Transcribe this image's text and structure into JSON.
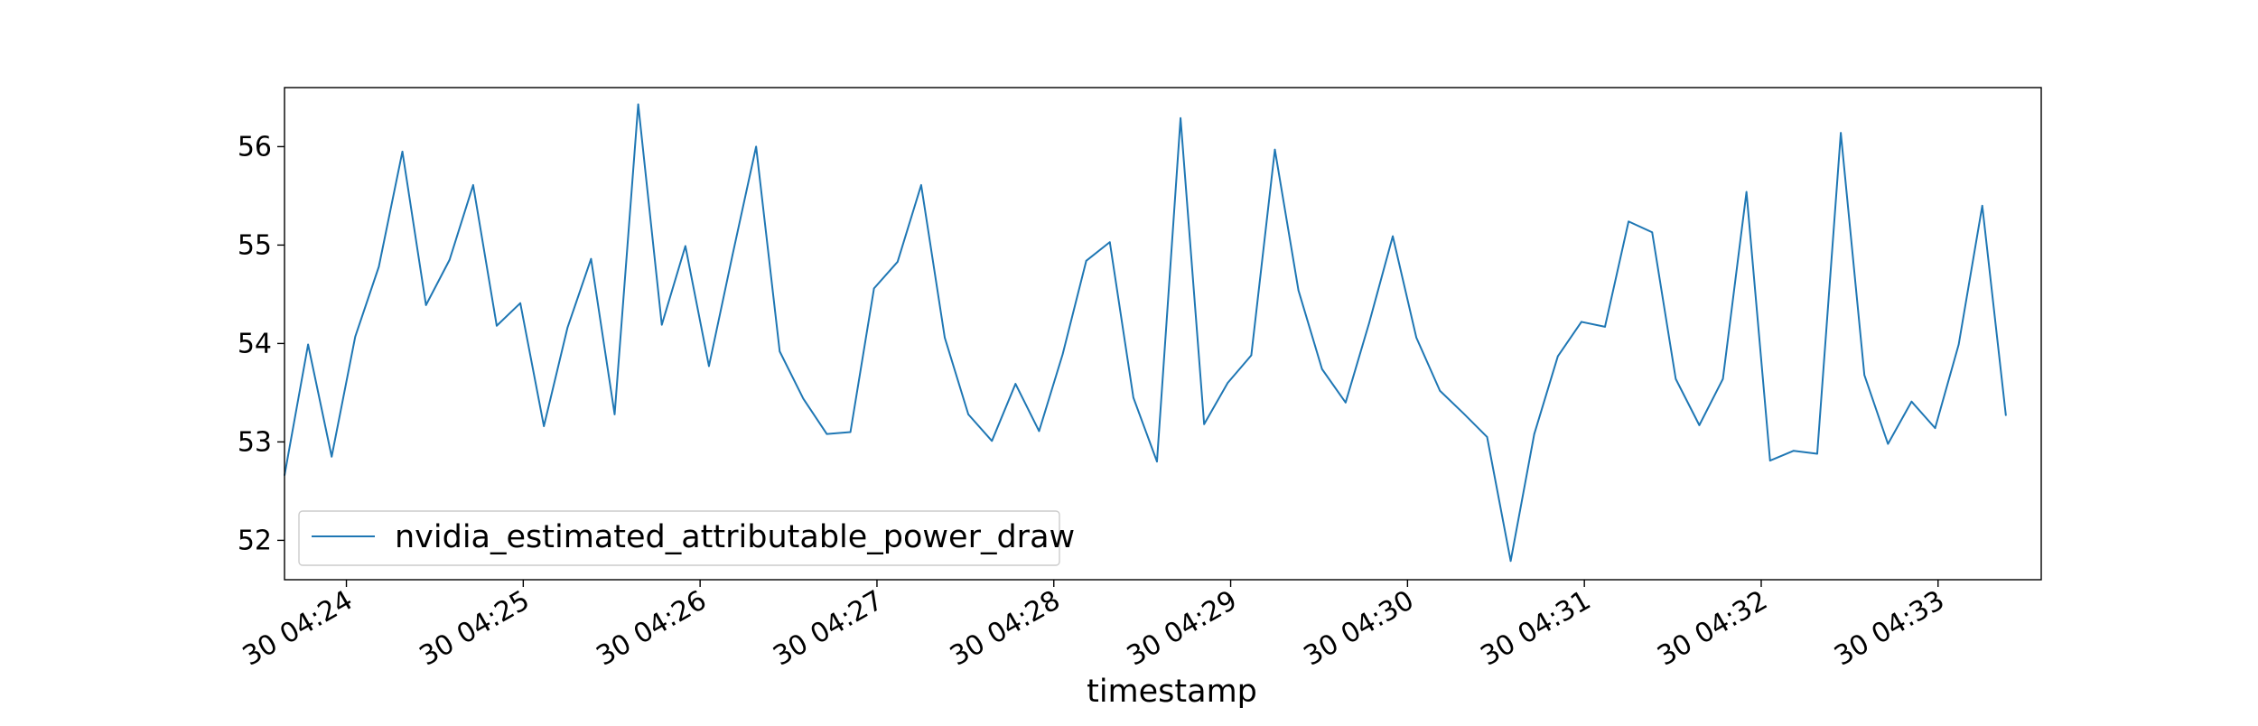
{
  "chart_data": {
    "type": "line",
    "title": "",
    "xlabel": "timestamp",
    "ylabel": "",
    "x_start": "04:23:39",
    "x_step_seconds": 8,
    "xlim": [
      "04:23:39",
      "04:33:35"
    ],
    "ylim": [
      51.6,
      56.6
    ],
    "y_ticks": [
      52,
      53,
      54,
      55,
      56
    ],
    "x_ticks": [
      {
        "time": "04:24:00",
        "label": "30 04:24"
      },
      {
        "time": "04:25:00",
        "label": "30 04:25"
      },
      {
        "time": "04:26:00",
        "label": "30 04:26"
      },
      {
        "time": "04:27:00",
        "label": "30 04:27"
      },
      {
        "time": "04:28:00",
        "label": "30 04:28"
      },
      {
        "time": "04:29:00",
        "label": "30 04:29"
      },
      {
        "time": "04:30:00",
        "label": "30 04:30"
      },
      {
        "time": "04:31:00",
        "label": "30 04:31"
      },
      {
        "time": "04:32:00",
        "label": "30 04:32"
      },
      {
        "time": "04:33:00",
        "label": "30 04:33"
      }
    ],
    "grid": false,
    "legend_position": "lower-left",
    "series": [
      {
        "name": "nvidia_estimated_attributable_power_draw",
        "color": "#1f77b4",
        "values": [
          52.66,
          53.99,
          52.85,
          54.07,
          54.78,
          55.95,
          54.39,
          54.85,
          55.61,
          54.18,
          54.41,
          53.16,
          54.16,
          54.86,
          53.28,
          56.43,
          54.19,
          54.99,
          53.77,
          54.9,
          56.0,
          53.92,
          53.44,
          53.08,
          53.1,
          54.56,
          54.83,
          55.61,
          54.06,
          53.28,
          53.01,
          53.59,
          53.11,
          53.89,
          54.84,
          55.03,
          53.45,
          52.8,
          56.29,
          53.18,
          53.6,
          53.88,
          55.97,
          54.54,
          53.74,
          53.4,
          54.21,
          55.09,
          54.06,
          53.52,
          53.29,
          53.05,
          51.79,
          53.08,
          53.87,
          54.22,
          54.17,
          55.24,
          55.13,
          53.64,
          53.17,
          53.64,
          55.54,
          52.81,
          52.91,
          52.88,
          56.14,
          53.68,
          52.98,
          53.41,
          53.14,
          53.99,
          55.4,
          53.27
        ]
      }
    ]
  }
}
